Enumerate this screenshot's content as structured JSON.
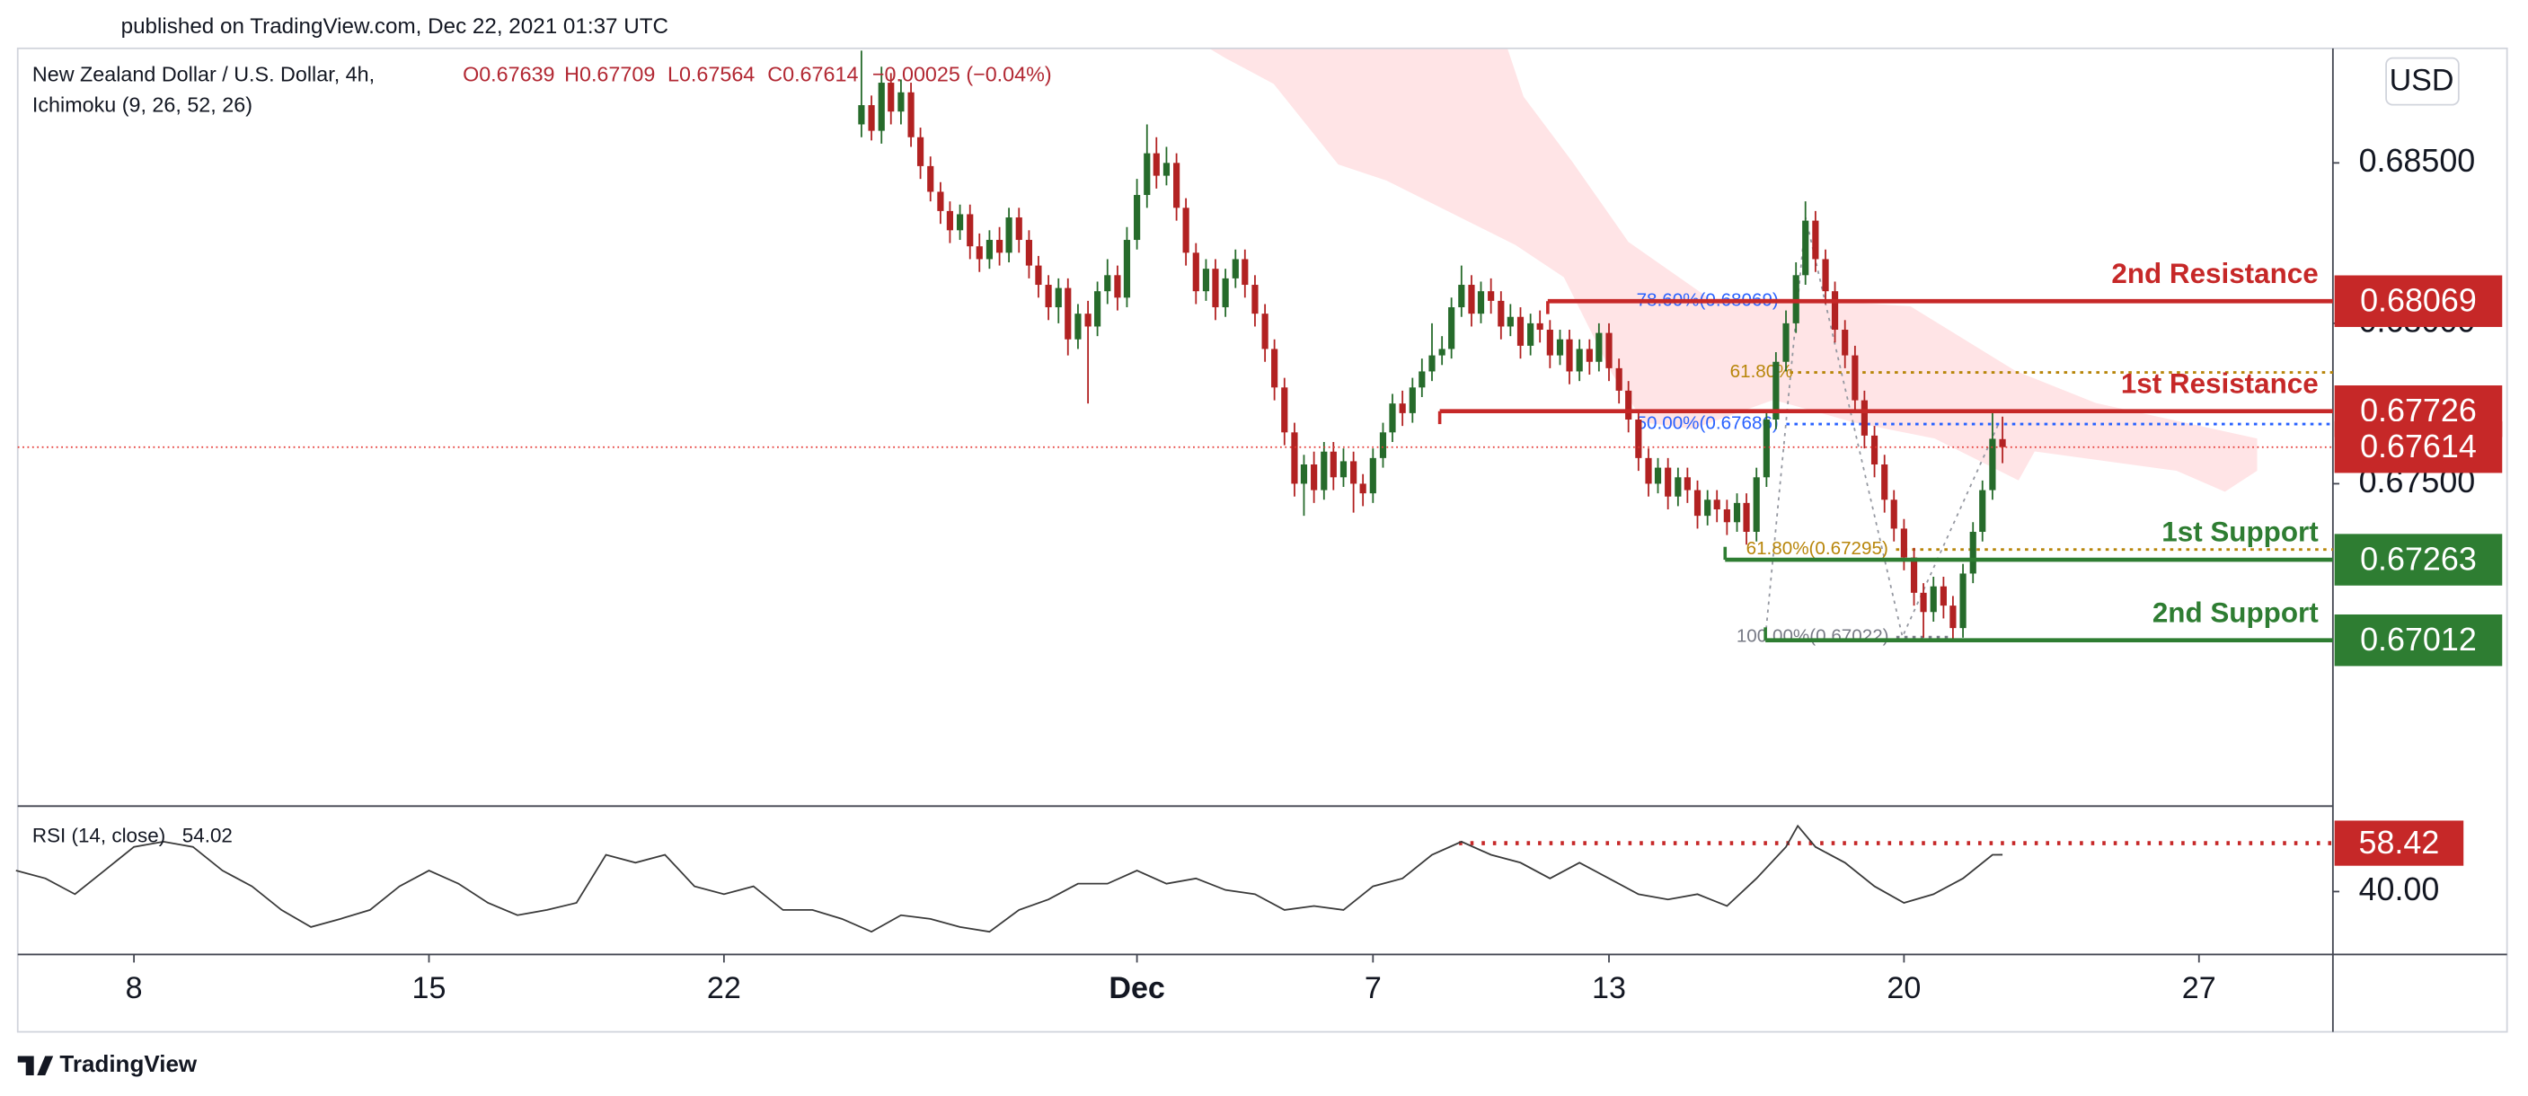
{
  "header": {
    "published": "published on TradingView.com, Dec 22, 2021 01:37 UTC",
    "symbol": "New Zealand Dollar / U.S. Dollar, 4h,",
    "indicator": "Ichimoku (9, 26, 52, 26)",
    "ohlc": [
      "O0.67639",
      "H0.67709",
      "L0.67564",
      "C0.67614",
      "−0.00025 (−0.04%)"
    ],
    "currency": "USD",
    "footer": "TradingView"
  },
  "chart_data": [
    {
      "type": "candlestick",
      "up_color": "#266b2b",
      "down_color": "#b22222",
      "x": [
        12.33,
        12.5,
        12.67,
        12.83,
        13,
        13.17,
        13.33,
        13.5,
        13.67,
        13.83,
        14,
        14.17,
        14.33,
        14.5,
        14.67,
        14.83,
        15,
        15.17,
        15.33,
        15.5,
        15.67,
        15.83,
        16,
        16.17,
        16.33,
        16.5,
        16.67,
        16.83,
        17,
        17.17,
        17.33,
        17.5,
        17.67,
        17.83,
        18,
        18.17,
        18.33,
        18.5,
        18.67,
        18.83,
        19,
        19.17,
        19.33,
        19.5,
        19.67,
        19.83,
        20,
        20.17,
        20.33,
        20.5,
        20.67,
        20.83,
        21,
        21.17,
        21.33,
        21.5,
        21.67,
        21.83,
        22,
        22.17,
        22.33,
        22.5,
        22.67,
        22.83,
        23,
        23.17,
        23.33,
        23.5,
        23.67,
        23.83,
        24,
        24.17,
        24.33,
        24.5,
        24.67,
        24.83,
        25,
        25.17,
        25.33,
        25.5,
        25.67,
        25.83,
        26,
        26.17,
        26.33,
        26.5,
        26.67,
        26.83,
        27,
        27.17,
        27.33,
        27.5,
        27.67,
        27.83,
        28,
        28.17,
        28.33,
        28.5,
        28.67,
        28.83,
        29,
        29.17,
        29.33,
        29.5,
        29.67,
        29.83,
        30,
        30.17,
        30.33,
        30.5,
        30.67,
        30.83,
        31,
        31.17,
        31.33,
        31.5,
        31.67
      ],
      "open": [
        0.6862,
        0.6868,
        0.686,
        0.6875,
        0.6866,
        0.6872,
        0.6858,
        0.6849,
        0.6841,
        0.6835,
        0.6829,
        0.6834,
        0.6824,
        0.682,
        0.6826,
        0.6822,
        0.6833,
        0.6826,
        0.6818,
        0.6812,
        0.6805,
        0.6811,
        0.6795,
        0.6803,
        0.6799,
        0.681,
        0.6815,
        0.6808,
        0.6826,
        0.684,
        0.6853,
        0.6846,
        0.685,
        0.6836,
        0.6822,
        0.681,
        0.6817,
        0.6805,
        0.6814,
        0.682,
        0.6812,
        0.6803,
        0.6792,
        0.678,
        0.6766,
        0.675,
        0.6756,
        0.6748,
        0.676,
        0.6752,
        0.6757,
        0.675,
        0.6747,
        0.6758,
        0.6766,
        0.6775,
        0.6772,
        0.678,
        0.6785,
        0.679,
        0.6792,
        0.6805,
        0.6812,
        0.6803,
        0.681,
        0.6807,
        0.6799,
        0.6802,
        0.6793,
        0.68,
        0.6798,
        0.679,
        0.6795,
        0.6785,
        0.6792,
        0.6788,
        0.6797,
        0.6786,
        0.6779,
        0.677,
        0.6758,
        0.675,
        0.6755,
        0.6746,
        0.6752,
        0.6748,
        0.674,
        0.6745,
        0.6742,
        0.6738,
        0.6744,
        0.6735,
        0.6752,
        0.677,
        0.6788,
        0.68,
        0.6815,
        0.6832,
        0.682,
        0.681,
        0.6798,
        0.679,
        0.6776,
        0.6765,
        0.6756,
        0.6745,
        0.6736,
        0.6727,
        0.6716,
        0.671,
        0.6718,
        0.6712,
        0.6705,
        0.6722,
        0.6735,
        0.6748,
        0.67639
      ],
      "high": [
        0.6885,
        0.6871,
        0.688,
        0.6878,
        0.6876,
        0.6875,
        0.6861,
        0.6852,
        0.6844,
        0.6838,
        0.6837,
        0.6837,
        0.6828,
        0.6829,
        0.683,
        0.6836,
        0.6836,
        0.6829,
        0.6821,
        0.6815,
        0.6814,
        0.6814,
        0.6806,
        0.6807,
        0.6813,
        0.682,
        0.6818,
        0.683,
        0.6845,
        0.6862,
        0.6858,
        0.6855,
        0.6853,
        0.6839,
        0.6825,
        0.682,
        0.682,
        0.6817,
        0.6823,
        0.6823,
        0.6815,
        0.6806,
        0.6795,
        0.6783,
        0.6769,
        0.6759,
        0.676,
        0.6763,
        0.6763,
        0.6761,
        0.676,
        0.6753,
        0.6761,
        0.6769,
        0.6778,
        0.6779,
        0.6783,
        0.6789,
        0.68,
        0.6796,
        0.6808,
        0.6818,
        0.6815,
        0.6813,
        0.6814,
        0.681,
        0.6806,
        0.6805,
        0.6803,
        0.6804,
        0.6801,
        0.6798,
        0.6798,
        0.6795,
        0.6795,
        0.68,
        0.68,
        0.6789,
        0.6782,
        0.6773,
        0.6761,
        0.6758,
        0.6758,
        0.6755,
        0.6755,
        0.6751,
        0.6748,
        0.6748,
        0.6745,
        0.6747,
        0.6747,
        0.6755,
        0.6773,
        0.6791,
        0.6804,
        0.6819,
        0.6838,
        0.6835,
        0.6823,
        0.6813,
        0.6801,
        0.6793,
        0.6779,
        0.6768,
        0.6759,
        0.6748,
        0.6739,
        0.673,
        0.6719,
        0.6721,
        0.6721,
        0.6715,
        0.6725,
        0.6738,
        0.6751,
        0.6772,
        0.67709
      ],
      "low": [
        0.6858,
        0.6857,
        0.6856,
        0.6862,
        0.6862,
        0.6855,
        0.6845,
        0.6838,
        0.6831,
        0.6825,
        0.6826,
        0.682,
        0.6816,
        0.6817,
        0.6818,
        0.6819,
        0.6822,
        0.6814,
        0.6808,
        0.6801,
        0.68,
        0.679,
        0.6792,
        0.6775,
        0.6796,
        0.6806,
        0.6804,
        0.6805,
        0.6823,
        0.6836,
        0.6842,
        0.6843,
        0.6832,
        0.6818,
        0.6806,
        0.6807,
        0.6801,
        0.6802,
        0.6811,
        0.6808,
        0.6799,
        0.6788,
        0.6776,
        0.6762,
        0.6746,
        0.674,
        0.6744,
        0.6745,
        0.6748,
        0.6749,
        0.6741,
        0.6743,
        0.6744,
        0.6755,
        0.6763,
        0.6768,
        0.6769,
        0.6777,
        0.6782,
        0.6787,
        0.6789,
        0.6802,
        0.6799,
        0.68,
        0.6803,
        0.6795,
        0.6796,
        0.6789,
        0.679,
        0.6794,
        0.6786,
        0.6787,
        0.6781,
        0.6782,
        0.6784,
        0.6785,
        0.6782,
        0.6775,
        0.6766,
        0.6754,
        0.6746,
        0.6747,
        0.6742,
        0.6743,
        0.6744,
        0.6736,
        0.6737,
        0.6738,
        0.6734,
        0.6735,
        0.6731,
        0.6732,
        0.6749,
        0.6767,
        0.6785,
        0.6797,
        0.6812,
        0.6816,
        0.6806,
        0.6794,
        0.6786,
        0.6772,
        0.6761,
        0.6752,
        0.6741,
        0.6732,
        0.6723,
        0.6712,
        0.6702,
        0.6707,
        0.6708,
        0.6701,
        0.6702,
        0.6719,
        0.6732,
        0.6745,
        0.67564
      ],
      "close": [
        0.6868,
        0.686,
        0.6875,
        0.6866,
        0.6872,
        0.6858,
        0.6849,
        0.6841,
        0.6835,
        0.6829,
        0.6834,
        0.6824,
        0.682,
        0.6826,
        0.6822,
        0.6833,
        0.6826,
        0.6818,
        0.6812,
        0.6805,
        0.6811,
        0.6795,
        0.6803,
        0.6799,
        0.681,
        0.6815,
        0.6808,
        0.6826,
        0.684,
        0.6853,
        0.6846,
        0.685,
        0.6836,
        0.6822,
        0.681,
        0.6817,
        0.6805,
        0.6814,
        0.682,
        0.6812,
        0.6803,
        0.6792,
        0.678,
        0.6766,
        0.675,
        0.6756,
        0.6748,
        0.676,
        0.6752,
        0.6757,
        0.675,
        0.6747,
        0.6758,
        0.6766,
        0.6775,
        0.6772,
        0.678,
        0.6785,
        0.679,
        0.6792,
        0.6805,
        0.6812,
        0.6803,
        0.681,
        0.6807,
        0.6799,
        0.6802,
        0.6793,
        0.68,
        0.6798,
        0.679,
        0.6795,
        0.6785,
        0.6792,
        0.6788,
        0.6797,
        0.6786,
        0.6779,
        0.677,
        0.6758,
        0.675,
        0.6755,
        0.6746,
        0.6752,
        0.6748,
        0.674,
        0.6745,
        0.6742,
        0.6738,
        0.6744,
        0.6735,
        0.6752,
        0.677,
        0.6788,
        0.68,
        0.6815,
        0.6832,
        0.682,
        0.681,
        0.6798,
        0.679,
        0.6776,
        0.6765,
        0.6756,
        0.6745,
        0.6736,
        0.6727,
        0.6716,
        0.671,
        0.6718,
        0.6712,
        0.6705,
        0.6722,
        0.6735,
        0.6748,
        0.6764,
        0.67614
      ],
      "xlim": [
        -1.97,
        37.27
      ],
      "xticks": [
        {
          "value": 0,
          "label": "8"
        },
        {
          "value": 5,
          "label": "15"
        },
        {
          "value": 10,
          "label": "22"
        },
        {
          "value": 17,
          "label": "Dec"
        },
        {
          "value": 21,
          "label": "7"
        },
        {
          "value": 25,
          "label": "13"
        },
        {
          "value": 30,
          "label": "20"
        },
        {
          "value": 35,
          "label": "27"
        }
      ],
      "ylim": [
        0.66495,
        0.68857
      ],
      "yticks": [
        {
          "value": 0.675,
          "label": "0.67500"
        },
        {
          "value": 0.68,
          "label": "0.68000"
        },
        {
          "value": 0.685,
          "label": "0.68500"
        }
      ],
      "price_line_color": "#e53935",
      "levels": [
        {
          "name": "2nd Resistance",
          "value": 0.68069,
          "color": "#c62828"
        },
        {
          "name": "1st Resistance",
          "value": 0.67726,
          "color": "#c62828"
        },
        {
          "name": "1st Support",
          "value": 0.67263,
          "color": "#2e7d32"
        },
        {
          "name": "2nd Support",
          "value": 0.67012,
          "color": "#2e7d32"
        }
      ],
      "fib": [
        {
          "label": "78.60%(0.68069)",
          "value": 0.68069,
          "color": "#2962ff"
        },
        {
          "label": "61.80%",
          "value": 0.67847,
          "color": "#b8860b"
        },
        {
          "label": "50.00%(0.67686)",
          "value": 0.67686,
          "color": "#2962ff"
        },
        {
          "label": "61.80%(0.67295)",
          "value": 0.67295,
          "color": "#b8860b"
        },
        {
          "label": "100.00%(0.67022)",
          "value": 0.67022,
          "color": "#787b86"
        }
      ]
    },
    {
      "type": "line",
      "title": "RSI (14, close)",
      "color": "#3a3a3a",
      "x": [
        -2,
        -1.5,
        -1,
        -0.5,
        0,
        0.5,
        1,
        1.5,
        2,
        2.5,
        3,
        3.5,
        4,
        4.5,
        5,
        5.5,
        6,
        6.5,
        7,
        7.5,
        8,
        8.5,
        9,
        9.5,
        10,
        10.5,
        11,
        11.5,
        12,
        12.5,
        13,
        13.5,
        14,
        14.5,
        15,
        15.5,
        16,
        16.5,
        17,
        17.5,
        18,
        18.5,
        19,
        19.5,
        20,
        20.5,
        21,
        21.5,
        22,
        22.5,
        23,
        23.5,
        24,
        24.5,
        25,
        25.5,
        26,
        26.5,
        27,
        27.5,
        28,
        28.2,
        28.5,
        29,
        29.5,
        30,
        30.5,
        31,
        31.5,
        31.67
      ],
      "values": [
        48,
        45,
        39,
        48,
        57,
        59,
        57,
        48,
        42,
        33,
        26.5,
        29.6,
        33,
        42,
        48,
        43,
        35.7,
        31,
        33,
        35.7,
        54,
        51,
        54,
        42,
        39,
        42,
        33,
        33,
        29.6,
        24.7,
        31,
        29.6,
        26.5,
        24.7,
        33,
        37,
        43,
        43,
        48,
        43,
        45,
        40.6,
        39,
        33,
        34.5,
        33,
        42,
        45,
        54,
        59,
        54,
        51,
        45,
        51,
        45,
        39,
        37,
        39,
        34.5,
        45,
        57,
        65,
        57,
        51,
        42,
        35.7,
        39,
        45,
        54,
        54.02
      ],
      "ylim": [
        16.06,
        72.53
      ],
      "yticks": [
        {
          "value": 40,
          "label": "40.00"
        }
      ],
      "levels": [
        {
          "value": 58.42,
          "color": "#c62828"
        }
      ]
    }
  ]
}
